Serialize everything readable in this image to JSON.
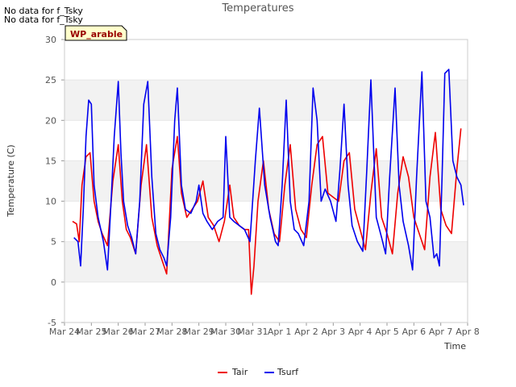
{
  "notes": [
    "No data for f_Tsky",
    "No data for f_Tsky"
  ],
  "badge": "WP_arable",
  "chart_data": {
    "type": "line",
    "title": "Temperatures",
    "xlabel": "Time",
    "ylabel": "Temperature (C)",
    "ylim": [
      -5,
      30
    ],
    "yticks": [
      -5,
      0,
      5,
      10,
      15,
      20,
      25,
      30
    ],
    "xlim": [
      0,
      15
    ],
    "xticks": [
      0,
      1,
      2,
      3,
      4,
      5,
      6,
      7,
      8,
      9,
      10,
      11,
      12,
      13,
      14,
      15
    ],
    "xtick_labels": [
      "Mar 24",
      "Mar 25",
      "Mar 26",
      "Mar 27",
      "Mar 28",
      "Mar 29",
      "Mar 30",
      "Mar 31",
      "Apr 1",
      "Apr 2",
      "Apr 3",
      "Apr 4",
      "Apr 5",
      "Apr 6",
      "Apr 7",
      "Apr 8"
    ],
    "grid": "horizontal bands",
    "legend": "bottom-center",
    "series": [
      {
        "name": "Tair",
        "color": "#ee0000",
        "x": [
          0.3,
          0.45,
          0.55,
          0.65,
          0.8,
          0.95,
          1.1,
          1.25,
          1.4,
          1.6,
          1.8,
          2.0,
          2.15,
          2.3,
          2.45,
          2.65,
          2.85,
          3.05,
          3.25,
          3.45,
          3.6,
          3.8,
          4.0,
          4.2,
          4.35,
          4.55,
          4.75,
          4.95,
          5.15,
          5.35,
          5.55,
          5.75,
          5.95,
          6.15,
          6.3,
          6.5,
          6.7,
          6.85,
          6.95,
          7.05,
          7.2,
          7.4,
          7.6,
          7.8,
          8.0,
          8.2,
          8.4,
          8.6,
          8.8,
          9.0,
          9.2,
          9.4,
          9.6,
          9.8,
          10.0,
          10.2,
          10.4,
          10.6,
          10.8,
          11.0,
          11.2,
          11.4,
          11.6,
          11.8,
          12.0,
          12.2,
          12.4,
          12.6,
          12.8,
          13.0,
          13.2,
          13.4,
          13.6,
          13.8,
          14.0,
          14.2,
          14.4,
          14.6,
          14.75
        ],
        "y": [
          7.5,
          7.2,
          5.0,
          12.0,
          15.5,
          16.0,
          10.0,
          7.5,
          6.0,
          4.5,
          12.5,
          17.0,
          10.0,
          6.5,
          5.5,
          3.5,
          12.0,
          17.0,
          8.0,
          4.5,
          3.0,
          1.0,
          14.0,
          18.0,
          11.0,
          8.0,
          9.0,
          10.0,
          12.5,
          8.0,
          7.0,
          5.0,
          7.5,
          12.0,
          8.0,
          7.0,
          6.5,
          6.5,
          -1.5,
          2.0,
          10.0,
          15.0,
          9.0,
          6.0,
          5.0,
          12.0,
          17.0,
          9.0,
          6.5,
          5.5,
          12.0,
          17.0,
          18.0,
          11.0,
          10.5,
          10.0,
          15.0,
          16.0,
          9.0,
          6.5,
          4.0,
          11.0,
          16.5,
          8.0,
          6.0,
          3.5,
          11.0,
          15.5,
          13.0,
          8.0,
          6.0,
          4.0,
          13.0,
          18.5,
          9.0,
          7.0,
          6.0,
          14.0,
          19.0
        ]
      },
      {
        "name": "Tsurf",
        "color": "#0000ee",
        "x": [
          0.35,
          0.5,
          0.6,
          0.7,
          0.8,
          0.9,
          1.0,
          1.1,
          1.25,
          1.45,
          1.6,
          1.75,
          1.85,
          2.0,
          2.1,
          2.2,
          2.35,
          2.5,
          2.65,
          2.8,
          2.95,
          3.1,
          3.25,
          3.4,
          3.55,
          3.7,
          3.8,
          3.95,
          4.1,
          4.2,
          4.35,
          4.5,
          4.7,
          4.9,
          5.0,
          5.15,
          5.3,
          5.5,
          5.7,
          5.9,
          6.0,
          6.15,
          6.3,
          6.5,
          6.7,
          6.9,
          7.1,
          7.25,
          7.45,
          7.65,
          7.85,
          7.95,
          8.1,
          8.25,
          8.4,
          8.55,
          8.7,
          8.9,
          9.1,
          9.25,
          9.4,
          9.55,
          9.7,
          9.9,
          10.1,
          10.25,
          10.4,
          10.55,
          10.7,
          10.9,
          11.1,
          11.25,
          11.4,
          11.6,
          11.8,
          11.95,
          12.1,
          12.3,
          12.45,
          12.6,
          12.8,
          12.95,
          13.1,
          13.3,
          13.45,
          13.6,
          13.75,
          13.85,
          13.95,
          14.05,
          14.15,
          14.3,
          14.45,
          14.6,
          14.75,
          14.85
        ],
        "y": [
          5.5,
          5.0,
          2.0,
          9.0,
          18.0,
          22.5,
          22.0,
          12.0,
          8.0,
          5.0,
          1.5,
          11.0,
          18.0,
          24.8,
          16.0,
          10.0,
          7.0,
          5.5,
          3.5,
          10.0,
          22.0,
          24.8,
          13.0,
          6.0,
          4.0,
          3.0,
          2.0,
          8.0,
          20.0,
          24.0,
          12.0,
          9.0,
          8.5,
          10.0,
          12.0,
          8.5,
          7.5,
          6.5,
          7.5,
          8.0,
          18.0,
          8.0,
          7.5,
          7.0,
          6.5,
          5.0,
          15.0,
          21.5,
          12.0,
          8.0,
          5.0,
          4.5,
          12.0,
          22.5,
          10.0,
          6.5,
          6.0,
          4.5,
          10.0,
          24.0,
          20.0,
          10.0,
          11.5,
          10.0,
          7.5,
          14.0,
          22.0,
          12.0,
          7.0,
          5.0,
          3.8,
          14.0,
          25.0,
          8.0,
          5.5,
          3.5,
          13.0,
          24.0,
          12.0,
          7.5,
          4.5,
          1.5,
          13.0,
          26.0,
          10.0,
          8.0,
          3.0,
          3.5,
          2.0,
          13.0,
          25.8,
          26.3,
          15.0,
          13.0,
          12.0,
          9.5
        ]
      }
    ]
  }
}
